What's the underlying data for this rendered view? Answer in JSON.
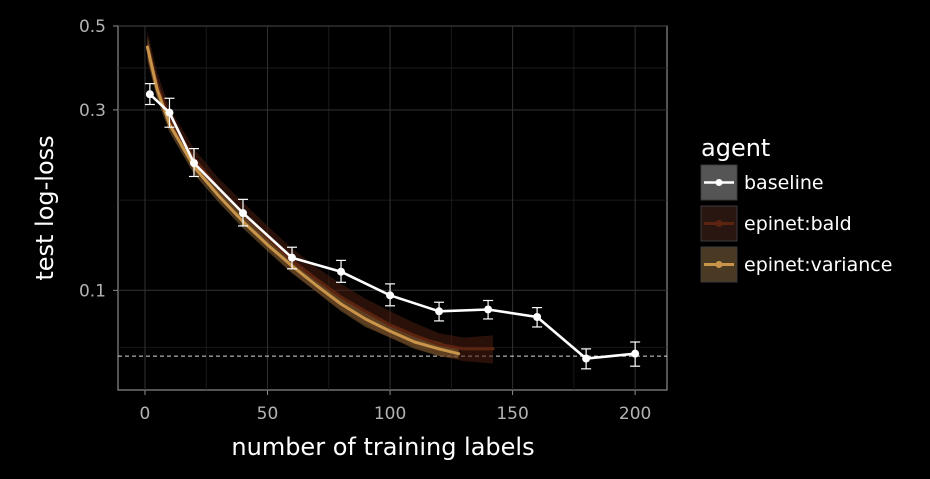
{
  "chart_data": {
    "type": "line",
    "xlabel": "number of training labels",
    "ylabel": "test log-loss",
    "xlim": [
      -11,
      213
    ],
    "ylim": [
      0.0545,
      0.5
    ],
    "y_scale": "log",
    "x_ticks": [
      0,
      50,
      100,
      150,
      200
    ],
    "x_tick_labels": [
      "0",
      "50",
      "100",
      "150",
      "200"
    ],
    "y_ticks": [
      0.1,
      0.3,
      0.5
    ],
    "y_tick_labels": [
      "0.1",
      "0.3",
      "0.5"
    ],
    "grid": true,
    "legend_title": "agent",
    "legend_position": "right",
    "reference_line": {
      "y": 0.067,
      "style": "dashed",
      "color": "#ffffff"
    },
    "series": [
      {
        "name": "baseline",
        "color": "#ffffff",
        "x": [
          2,
          10,
          20,
          40,
          60,
          80,
          100,
          120,
          140,
          160,
          180,
          200
        ],
        "y": [
          0.33,
          0.295,
          0.217,
          0.16,
          0.122,
          0.112,
          0.097,
          0.088,
          0.089,
          0.085,
          0.066,
          0.068
        ],
        "err_low": [
          0.31,
          0.27,
          0.2,
          0.148,
          0.114,
          0.105,
          0.091,
          0.083,
          0.084,
          0.08,
          0.062,
          0.063
        ],
        "err_high": [
          0.352,
          0.322,
          0.237,
          0.174,
          0.13,
          0.12,
          0.104,
          0.093,
          0.094,
          0.09,
          0.07,
          0.073
        ]
      },
      {
        "name": "epinet:bald",
        "color": "#5c2410",
        "band_color": "#4a1f10",
        "x": [
          1,
          5,
          10,
          20,
          30,
          40,
          50,
          60,
          70,
          80,
          90,
          100,
          110,
          120,
          130,
          142
        ],
        "y": [
          0.44,
          0.35,
          0.285,
          0.223,
          0.186,
          0.16,
          0.138,
          0.12,
          0.107,
          0.096,
          0.088,
          0.081,
          0.076,
          0.072,
          0.07,
          0.07
        ],
        "band_low": [
          0.4,
          0.325,
          0.268,
          0.21,
          0.175,
          0.15,
          0.129,
          0.112,
          0.099,
          0.089,
          0.081,
          0.075,
          0.071,
          0.067,
          0.065,
          0.064
        ],
        "band_high": [
          0.485,
          0.377,
          0.304,
          0.237,
          0.198,
          0.171,
          0.148,
          0.129,
          0.115,
          0.104,
          0.095,
          0.088,
          0.082,
          0.077,
          0.075,
          0.076
        ]
      },
      {
        "name": "epinet:variance",
        "color": "#c8954a",
        "band_color": "#8a6433",
        "x": [
          1,
          5,
          10,
          20,
          30,
          40,
          50,
          60,
          70,
          80,
          90,
          100,
          110,
          120,
          128
        ],
        "y": [
          0.44,
          0.34,
          0.275,
          0.212,
          0.178,
          0.152,
          0.132,
          0.116,
          0.103,
          0.092,
          0.084,
          0.078,
          0.073,
          0.07,
          0.068
        ],
        "band_low": [
          0.41,
          0.32,
          0.262,
          0.203,
          0.171,
          0.146,
          0.127,
          0.111,
          0.099,
          0.088,
          0.08,
          0.075,
          0.07,
          0.067,
          0.066
        ],
        "band_high": [
          0.47,
          0.36,
          0.288,
          0.221,
          0.185,
          0.158,
          0.137,
          0.121,
          0.107,
          0.096,
          0.088,
          0.081,
          0.076,
          0.073,
          0.07
        ]
      }
    ]
  }
}
